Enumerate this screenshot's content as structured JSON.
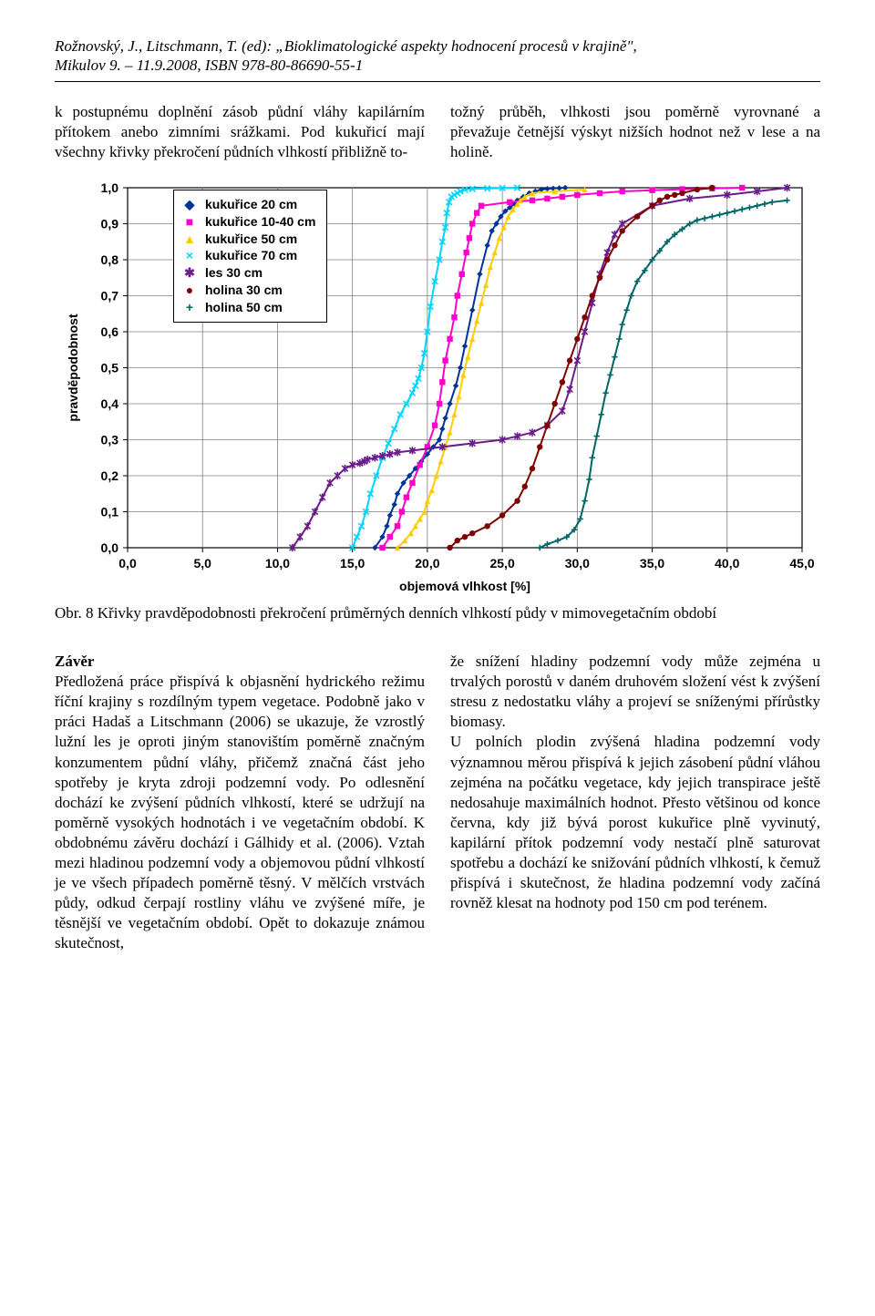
{
  "header": {
    "line1": "Rožnovský, J., Litschmann, T. (ed): „Bioklimatologické aspekty hodnocení procesů v krajině\",",
    "line2": "Mikulov 9. – 11.9.2008, ISBN 978-80-86690-55-1"
  },
  "top_paragraph": {
    "left": "k postupnému doplnění zásob půdní vláhy kapilárním přítokem anebo zimními srážkami. Pod kukuřicí mají všechny křivky překročení půdních vlhkostí přibližně to-",
    "right": "tožný průběh, vlhkosti jsou poměrně vyrovnané a převažuje četnější výskyt nižších hodnot než v lese a na holině."
  },
  "chart": {
    "type": "line",
    "xlabel": "objemová vlhkost [%]",
    "ylabel": "pravděpodobnost",
    "ylabel_fontsize": 14,
    "xlabel_fontsize": 14,
    "xlim": [
      0,
      45
    ],
    "ylim": [
      0,
      1
    ],
    "xtick_step": 5,
    "ytick_step": 0.1,
    "xticks": [
      "0,0",
      "5,0",
      "10,0",
      "15,0",
      "20,0",
      "25,0",
      "30,0",
      "35,0",
      "40,0",
      "45,0"
    ],
    "yticks": [
      "0,0",
      "0,1",
      "0,2",
      "0,3",
      "0,4",
      "0,5",
      "0,6",
      "0,7",
      "0,8",
      "0,9",
      "1,0"
    ],
    "background_color": "#ffffff",
    "grid_color": "#808080",
    "grid_on": true,
    "axis_width": 1.5,
    "series": [
      {
        "name": "kukuřice 20 cm",
        "color": "#003399",
        "marker": "diamond",
        "x": [
          16.5,
          17.0,
          17.3,
          17.5,
          17.8,
          18.0,
          18.4,
          18.8,
          19.2,
          19.6,
          20.0,
          20.4,
          20.8,
          21.0,
          21.2,
          21.5,
          21.9,
          22.2,
          22.5,
          23.0,
          23.5,
          24.0,
          24.3,
          24.6,
          24.9,
          25.2,
          25.5,
          25.8,
          26.0,
          26.4,
          26.8,
          27.2,
          27.6,
          28.0,
          28.4,
          28.8,
          29.2
        ],
        "y": [
          0.0,
          0.03,
          0.06,
          0.09,
          0.12,
          0.15,
          0.18,
          0.2,
          0.22,
          0.24,
          0.26,
          0.28,
          0.3,
          0.33,
          0.36,
          0.4,
          0.45,
          0.5,
          0.56,
          0.66,
          0.76,
          0.84,
          0.88,
          0.9,
          0.92,
          0.935,
          0.945,
          0.955,
          0.965,
          0.975,
          0.985,
          0.99,
          0.995,
          0.997,
          0.998,
          0.999,
          1.0
        ]
      },
      {
        "name": "kukuřice 10-40  cm",
        "color": "#ff00cc",
        "marker": "square",
        "x": [
          17.0,
          17.5,
          18.0,
          18.3,
          18.6,
          19.0,
          19.5,
          20.0,
          20.5,
          20.8,
          21.0,
          21.2,
          21.5,
          21.8,
          22.0,
          22.3,
          22.6,
          22.8,
          23.0,
          23.3,
          23.6,
          25.5,
          27.0,
          28.0,
          29.0,
          30.0,
          31.5,
          33.0,
          35.0,
          37.0,
          39.0,
          41.0
        ],
        "y": [
          0.0,
          0.03,
          0.06,
          0.1,
          0.14,
          0.18,
          0.23,
          0.28,
          0.34,
          0.4,
          0.46,
          0.52,
          0.58,
          0.64,
          0.7,
          0.76,
          0.82,
          0.86,
          0.9,
          0.93,
          0.95,
          0.96,
          0.965,
          0.97,
          0.975,
          0.98,
          0.985,
          0.99,
          0.993,
          0.996,
          0.998,
          1.0
        ]
      },
      {
        "name": "kukuřice 50 cm",
        "color": "#ffcc00",
        "marker": "triangle",
        "x": [
          18.0,
          18.5,
          18.9,
          19.2,
          19.5,
          19.8,
          20.0,
          20.3,
          20.6,
          20.9,
          21.2,
          21.5,
          21.8,
          22.1,
          22.4,
          22.7,
          23.0,
          23.3,
          23.6,
          23.9,
          24.2,
          24.5,
          24.8,
          25.1,
          25.4,
          25.7,
          26.0,
          26.2,
          26.5,
          27.0,
          28.5,
          30.5
        ],
        "y": [
          0.0,
          0.02,
          0.04,
          0.06,
          0.08,
          0.1,
          0.13,
          0.16,
          0.2,
          0.24,
          0.28,
          0.32,
          0.37,
          0.42,
          0.48,
          0.53,
          0.58,
          0.63,
          0.68,
          0.73,
          0.78,
          0.82,
          0.86,
          0.89,
          0.92,
          0.94,
          0.955,
          0.965,
          0.975,
          0.985,
          0.99,
          0.995
        ]
      },
      {
        "name": "kukuřice 70 cm",
        "color": "#00d5ff",
        "marker": "x",
        "x": [
          15.0,
          15.3,
          15.6,
          15.9,
          16.2,
          16.6,
          17.0,
          17.4,
          17.8,
          18.2,
          18.6,
          19.0,
          19.2,
          19.4,
          19.6,
          19.8,
          20.0,
          20.2,
          20.5,
          20.8,
          21.0,
          21.2,
          21.3,
          21.45,
          21.6,
          21.8,
          22.0,
          22.2,
          22.5,
          23.0,
          24.0,
          25.0,
          26.0
        ],
        "y": [
          0.0,
          0.03,
          0.06,
          0.1,
          0.15,
          0.2,
          0.25,
          0.29,
          0.33,
          0.37,
          0.4,
          0.43,
          0.45,
          0.47,
          0.5,
          0.54,
          0.6,
          0.67,
          0.74,
          0.8,
          0.85,
          0.89,
          0.93,
          0.96,
          0.975,
          0.98,
          0.985,
          0.99,
          0.995,
          0.997,
          0.998,
          0.999,
          1.0
        ]
      },
      {
        "name": "les 30 cm",
        "color": "#6b1b8a",
        "marker": "star",
        "x": [
          11.0,
          11.5,
          12.0,
          12.5,
          13.0,
          13.5,
          14.0,
          14.5,
          15.0,
          15.5,
          15.8,
          16.0,
          16.5,
          17.0,
          17.5,
          18.0,
          19.0,
          21.0,
          23.0,
          25.0,
          26.0,
          27.0,
          28.0,
          29.0,
          29.5,
          30.0,
          30.5,
          31.0,
          31.5,
          32.0,
          32.5,
          33.0,
          35.0,
          37.5,
          40.0,
          42.0,
          44.0
        ],
        "y": [
          0.0,
          0.03,
          0.06,
          0.1,
          0.14,
          0.18,
          0.2,
          0.22,
          0.23,
          0.235,
          0.24,
          0.245,
          0.25,
          0.255,
          0.26,
          0.265,
          0.27,
          0.28,
          0.29,
          0.3,
          0.31,
          0.32,
          0.34,
          0.38,
          0.44,
          0.52,
          0.6,
          0.68,
          0.76,
          0.82,
          0.87,
          0.9,
          0.95,
          0.97,
          0.98,
          0.99,
          1.0
        ]
      },
      {
        "name": "holina 30 cm",
        "color": "#800000",
        "marker": "dot",
        "x": [
          21.5,
          22.0,
          22.5,
          23.0,
          24.0,
          25.0,
          26.0,
          26.5,
          27.0,
          27.5,
          28.0,
          28.5,
          29.0,
          29.5,
          30.0,
          30.5,
          31.0,
          31.5,
          32.0,
          32.5,
          33.0,
          34.0,
          35.0,
          35.5,
          36.0,
          36.5,
          37.0,
          38.0,
          39.0
        ],
        "y": [
          0.0,
          0.02,
          0.03,
          0.04,
          0.06,
          0.09,
          0.13,
          0.17,
          0.22,
          0.28,
          0.34,
          0.4,
          0.46,
          0.52,
          0.58,
          0.64,
          0.7,
          0.75,
          0.8,
          0.84,
          0.88,
          0.92,
          0.95,
          0.965,
          0.975,
          0.98,
          0.985,
          0.995,
          1.0
        ]
      },
      {
        "name": "holina 50 cm",
        "color": "#006666",
        "marker": "plus",
        "x": [
          27.5,
          28.0,
          28.7,
          29.3,
          29.8,
          30.2,
          30.5,
          30.8,
          31.0,
          31.3,
          31.6,
          31.9,
          32.2,
          32.5,
          32.8,
          33.0,
          33.3,
          33.6,
          34.0,
          34.5,
          35.0,
          35.5,
          36.0,
          36.5,
          37.0,
          37.5,
          38.0,
          38.5,
          39.0,
          39.5,
          40.0,
          40.5,
          41.0,
          41.5,
          42.0,
          42.5,
          43.0,
          44.0
        ],
        "y": [
          0.0,
          0.01,
          0.02,
          0.03,
          0.05,
          0.08,
          0.13,
          0.19,
          0.25,
          0.31,
          0.37,
          0.43,
          0.48,
          0.53,
          0.58,
          0.62,
          0.66,
          0.7,
          0.74,
          0.77,
          0.8,
          0.825,
          0.85,
          0.87,
          0.885,
          0.9,
          0.91,
          0.915,
          0.92,
          0.925,
          0.93,
          0.935,
          0.94,
          0.945,
          0.95,
          0.955,
          0.96,
          0.965
        ]
      }
    ]
  },
  "fig_caption": "Obr. 8 Křivky pravděpodobnosti překročení průměrných denních vlhkostí půdy v mimovegetačním období",
  "conclusion_head": "Závěr",
  "conclusion": {
    "left": "Předložená práce přispívá k objasnění hydrického režimu říční krajiny s rozdílným typem vegetace. Podobně jako v práci Hadaš a Litschmann (2006) se ukazuje, že vzrostlý lužní les je oproti jiným stanovištím poměrně značným konzumentem půdní vláhy, přičemž značná část jeho spotřeby je kryta zdroji podzemní vody. Po odlesnění dochází ke zvýšení půdních vlhkostí, které se udržují na poměrně vysokých hodnotách i ve vegetačním období. K obdobnému závěru dochází i Gálhidy et al. (2006). Vztah mezi hladinou podzemní vody a objemovou půdní vlhkostí je ve všech případech poměrně těsný. V mělčích vrstvách půdy, odkud čerpají rostliny vláhu ve zvýšené míře, je těsnější ve vegetačním období. Opět to dokazuje známou skutečnost,",
    "right": "že snížení hladiny podzemní vody může zejména u trvalých porostů v daném druhovém složení vést k zvýšení stresu z nedostatku vláhy a projeví se sníženými přírůstky biomasy.\nU polních plodin zvýšená hladina podzemní vody významnou měrou přispívá k jejich zásobení půdní vláhou zejména na počátku vegetace, kdy jejich transpirace ještě nedosahuje maximálních hodnot. Přesto většinou od konce června, kdy již bývá porost kukuřice plně vyvinutý, kapilární přítok podzemní vody nestačí plně saturovat spotřebu a dochází ke snižování půdních vlhkostí, k čemuž přispívá i skutečnost, že hladina podzemní vody začíná rovněž klesat na hodnoty pod 150 cm pod terénem."
  }
}
